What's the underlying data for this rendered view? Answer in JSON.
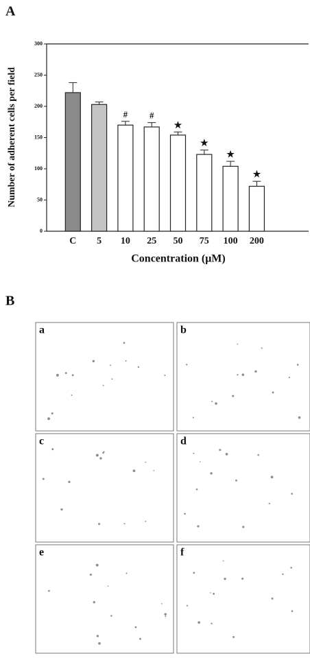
{
  "figure": {
    "panel_a": "A",
    "panel_b": "B",
    "subpanels": [
      "a",
      "b",
      "c",
      "d",
      "e",
      "f"
    ]
  },
  "chart_data": {
    "type": "bar",
    "ylabel": "Number of adherent cells per field",
    "xlabel": "Concentration (μM)",
    "categories": [
      "C",
      "5",
      "10",
      "25",
      "50",
      "75",
      "100",
      "200"
    ],
    "values": [
      222,
      203,
      170,
      167,
      154,
      123,
      104,
      72
    ],
    "errors": [
      16,
      4,
      6,
      7,
      5,
      7,
      8,
      8
    ],
    "annotations": [
      null,
      null,
      "#",
      "#",
      "★",
      "★",
      "★",
      "★"
    ],
    "colors": [
      "#8a8a8a",
      "#c4c4c4",
      "#ffffff",
      "#ffffff",
      "#ffffff",
      "#ffffff",
      "#ffffff",
      "#ffffff"
    ],
    "ylim": [
      0,
      300
    ],
    "yticks": [
      0,
      50,
      100,
      150,
      200,
      250,
      300
    ]
  }
}
